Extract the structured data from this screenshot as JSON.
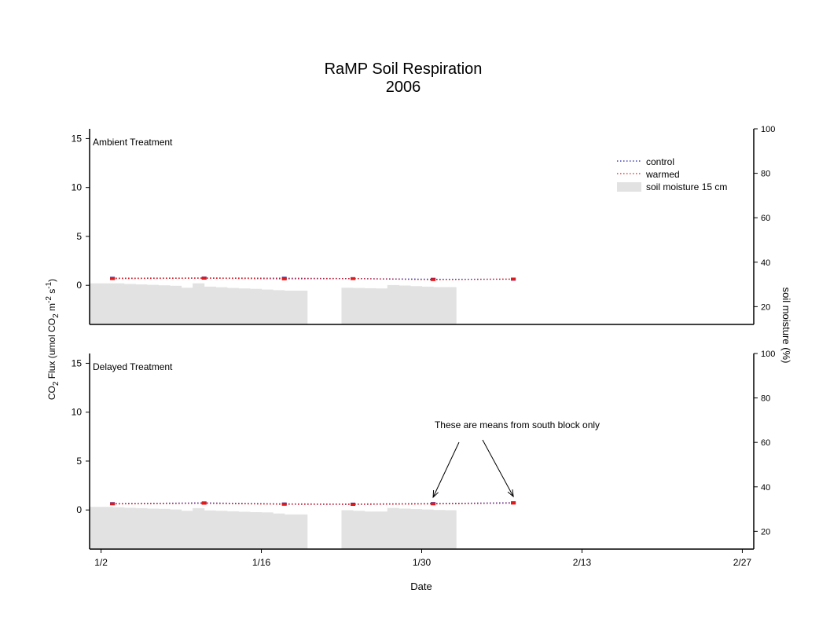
{
  "chart_data": {
    "type": "line",
    "title": "RaMP Soil Respiration",
    "subtitle": "2006",
    "xlabel": "Date",
    "ylabel_left": "CO2 Flux (umol CO2 m-2 s-1)",
    "ylabel_right": "soil moisture (%)",
    "x_ticks": [
      "1/2",
      "1/16",
      "1/30",
      "2/13",
      "2/27"
    ],
    "x_range": [
      "2006-01-01",
      "2006-02-28"
    ],
    "ylim_left": [
      -4,
      16
    ],
    "yticks_left": [
      0,
      5,
      10,
      15
    ],
    "ylim_right": [
      12,
      100
    ],
    "yticks_right": [
      20,
      40,
      60,
      80,
      100
    ],
    "grid": false,
    "legend": {
      "placement": "top-right",
      "entries": [
        {
          "label": "control",
          "color": "#1a1aa8",
          "style": "dotted"
        },
        {
          "label": "warmed",
          "color": "#e01a1a",
          "style": "dotted"
        },
        {
          "label": "soil moisture 15 cm",
          "color": "#e2e2e2",
          "style": "bar"
        }
      ]
    },
    "panels": [
      {
        "label": "Ambient Treatment",
        "series": [
          {
            "name": "control",
            "color": "#1a1aa8",
            "points": [
              [
                "2006-01-03",
                0.72
              ],
              [
                "2006-01-11",
                0.75
              ],
              [
                "2006-01-18",
                0.72
              ],
              [
                "2006-01-24",
                0.68
              ],
              [
                "2006-01-31",
                0.62
              ],
              [
                "2006-02-07",
                0.62
              ]
            ]
          },
          {
            "name": "warmed",
            "color": "#e01a1a",
            "points": [
              [
                "2006-01-03",
                0.68
              ],
              [
                "2006-01-11",
                0.72
              ],
              [
                "2006-01-18",
                0.66
              ],
              [
                "2006-01-24",
                0.68
              ],
              [
                "2006-01-31",
                0.58
              ],
              [
                "2006-02-07",
                0.64
              ]
            ]
          }
        ],
        "soil_moisture": [
          [
            "2006-01-01",
            30.5
          ],
          [
            "2006-01-02",
            30.5
          ],
          [
            "2006-01-03",
            30.5
          ],
          [
            "2006-01-04",
            30.2
          ],
          [
            "2006-01-05",
            30
          ],
          [
            "2006-01-06",
            29.8
          ],
          [
            "2006-01-07",
            29.6
          ],
          [
            "2006-01-08",
            29.4
          ],
          [
            "2006-01-09",
            28.5
          ],
          [
            "2006-01-10",
            30.5
          ],
          [
            "2006-01-11",
            29
          ],
          [
            "2006-01-12",
            28.7
          ],
          [
            "2006-01-13",
            28.4
          ],
          [
            "2006-01-14",
            28.2
          ],
          [
            "2006-01-15",
            28
          ],
          [
            "2006-01-16",
            27.7
          ],
          [
            "2006-01-17",
            27.4
          ],
          [
            "2006-01-18",
            27.2
          ],
          [
            "2006-01-19",
            27.2
          ],
          [
            "2006-01-23",
            28.5
          ],
          [
            "2006-01-24",
            28.4
          ],
          [
            "2006-01-25",
            28.3
          ],
          [
            "2006-01-26",
            28.2
          ],
          [
            "2006-01-27",
            29.7
          ],
          [
            "2006-01-28",
            29.5
          ],
          [
            "2006-01-29",
            29.2
          ],
          [
            "2006-01-30",
            29
          ],
          [
            "2006-01-31",
            28.8
          ],
          [
            "2006-02-01",
            28.8
          ]
        ]
      },
      {
        "label": "Delayed Treatment",
        "annotation": "These are means from south block only",
        "series": [
          {
            "name": "control",
            "color": "#1a1aa8",
            "points": [
              [
                "2006-01-03",
                0.65
              ],
              [
                "2006-01-11",
                0.72
              ],
              [
                "2006-01-18",
                0.62
              ],
              [
                "2006-01-24",
                0.6
              ],
              [
                "2006-01-31",
                0.66
              ],
              [
                "2006-02-07",
                0.74
              ]
            ]
          },
          {
            "name": "warmed",
            "color": "#e01a1a",
            "points": [
              [
                "2006-01-03",
                0.62
              ],
              [
                "2006-01-11",
                0.68
              ],
              [
                "2006-01-18",
                0.58
              ],
              [
                "2006-01-24",
                0.56
              ],
              [
                "2006-01-31",
                0.62
              ],
              [
                "2006-02-07",
                0.7
              ]
            ]
          }
        ],
        "soil_moisture": [
          [
            "2006-01-01",
            31
          ],
          [
            "2006-01-02",
            31
          ],
          [
            "2006-01-03",
            30.8
          ],
          [
            "2006-01-04",
            30.6
          ],
          [
            "2006-01-05",
            30.4
          ],
          [
            "2006-01-06",
            30.2
          ],
          [
            "2006-01-07",
            30.1
          ],
          [
            "2006-01-08",
            29.8
          ],
          [
            "2006-01-09",
            29.2
          ],
          [
            "2006-01-10",
            30.4
          ],
          [
            "2006-01-11",
            29.4
          ],
          [
            "2006-01-12",
            29.2
          ],
          [
            "2006-01-13",
            29
          ],
          [
            "2006-01-14",
            28.8
          ],
          [
            "2006-01-15",
            28.6
          ],
          [
            "2006-01-16",
            28.5
          ],
          [
            "2006-01-17",
            28
          ],
          [
            "2006-01-18",
            27.6
          ],
          [
            "2006-01-19",
            27.6
          ],
          [
            "2006-01-23",
            29.5
          ],
          [
            "2006-01-24",
            29.2
          ],
          [
            "2006-01-25",
            28.9
          ],
          [
            "2006-01-26",
            28.9
          ],
          [
            "2006-01-27",
            30.5
          ],
          [
            "2006-01-28",
            30.2
          ],
          [
            "2006-01-29",
            30
          ],
          [
            "2006-01-30",
            29.8
          ],
          [
            "2006-01-31",
            29.6
          ],
          [
            "2006-02-01",
            29.5
          ]
        ]
      }
    ]
  }
}
